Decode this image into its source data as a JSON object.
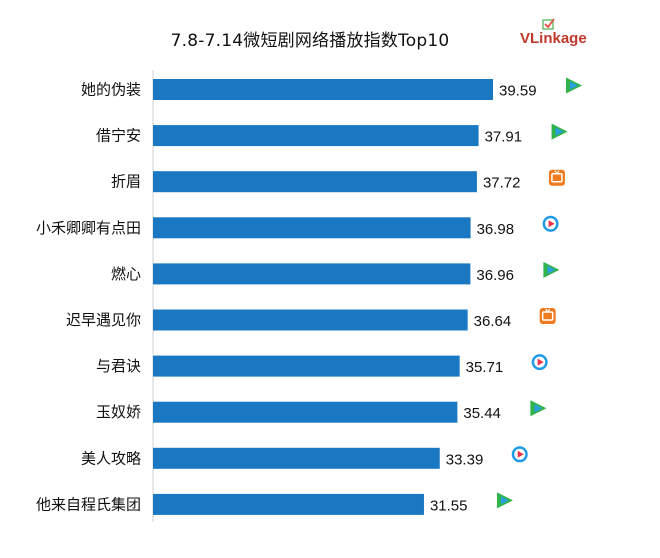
{
  "header": {
    "title": "7.8-7.14微短剧网络播放指数Top10",
    "logo_text_prefix": "VLink",
    "logo_text_suffix": "age"
  },
  "colors": {
    "bar": "#1a78c2",
    "axis": "#d0d0d0",
    "tencent_icon": "#2fb34a",
    "tencent_icon_accent": "#2a9fe0",
    "mango_icon": "#f07a1e",
    "youku_icon": "#1e9be6",
    "youku_icon_accent": "#e8334a",
    "logo": "#c0392b"
  },
  "chart_data": {
    "type": "bar",
    "orientation": "horizontal",
    "title": "7.8-7.14微短剧网络播放指数Top10",
    "categories": [
      "她的伪装",
      "借宁安",
      "折眉",
      "小禾卿卿有点田",
      "燃心",
      "迟早遇见你",
      "与君诀",
      "玉奴娇",
      "美人攻略",
      "他来自程氏集团"
    ],
    "values": [
      39.59,
      37.91,
      37.72,
      36.98,
      36.96,
      36.64,
      35.71,
      35.44,
      33.39,
      31.55
    ],
    "value_labels": [
      "39.59",
      "37.91",
      "37.72",
      "36.98",
      "36.96",
      "36.64",
      "35.71",
      "35.44",
      "33.39",
      "31.55"
    ],
    "platform_icons": [
      "tencent-video-icon",
      "tencent-video-icon",
      "mango-tv-icon",
      "youku-icon",
      "tencent-video-icon",
      "mango-tv-icon",
      "youku-icon",
      "tencent-video-icon",
      "youku-icon",
      "tencent-video-icon"
    ],
    "xlim": [
      0,
      46
    ],
    "grid": false,
    "legend": "none"
  }
}
